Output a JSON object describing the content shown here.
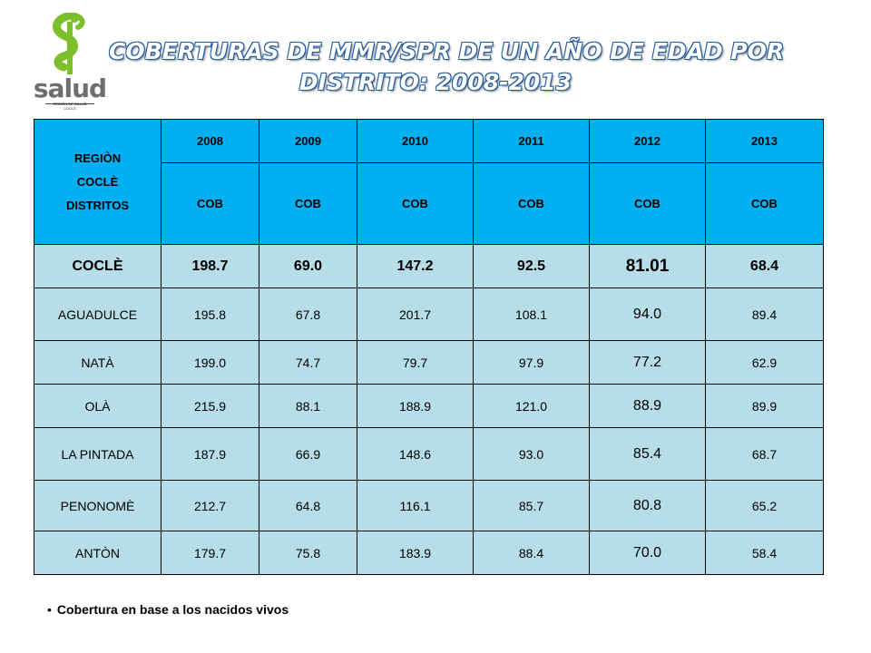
{
  "logo": {
    "brand": "salud",
    "line1": "REGIÓN DE SALUD",
    "line2": "COCLÉ",
    "colors": {
      "snake": "#7dbe2c",
      "text": "#6d6e71"
    }
  },
  "title": {
    "line1": "COBERTURAS DE MMR/SPR DE UN AÑO DE EDAD POR",
    "line2": "DISTRITO: 2008-2013"
  },
  "table": {
    "region_header": [
      "REGIÒN",
      "COCLÈ",
      "DISTRITOS"
    ],
    "years": [
      "2008",
      "2009",
      "2010",
      "2011",
      "2012",
      "2013"
    ],
    "sub_header": [
      "COB",
      "COB",
      "COB",
      "COB",
      "COB",
      "COB"
    ],
    "total_row": {
      "name": "COCLÈ",
      "values": [
        "198.7",
        "69.0",
        "147.2",
        "92.5",
        "81.01",
        "68.4"
      ]
    },
    "rows": [
      {
        "name": "AGUADULCE",
        "values": [
          "195.8",
          "67.8",
          "201.7",
          "108.1",
          "94.0",
          "89.4"
        ]
      },
      {
        "name": "NATÀ",
        "values": [
          "199.0",
          "74.7",
          "79.7",
          "97.9",
          "77.2",
          "62.9"
        ]
      },
      {
        "name": "OLÀ",
        "values": [
          "215.9",
          "88.1",
          "188.9",
          "121.0",
          "88.9",
          "89.9"
        ]
      },
      {
        "name": "LA PINTADA",
        "values": [
          "187.9",
          "66.9",
          "148.6",
          "93.0",
          "85.4",
          "68.7"
        ]
      },
      {
        "name": "PENONOMÈ",
        "values": [
          "212.7",
          "64.8",
          "116.1",
          "85.7",
          "80.8",
          "65.2"
        ]
      },
      {
        "name": "ANTÒN",
        "values": [
          "179.7",
          "75.8",
          "183.9",
          "88.4",
          "70.0",
          "58.4"
        ]
      }
    ],
    "colors": {
      "header": "#00b0f0",
      "body": "#b7dde8"
    }
  },
  "note": {
    "bullet": "•",
    "text": "Cobertura en base a los nacidos vivos"
  }
}
